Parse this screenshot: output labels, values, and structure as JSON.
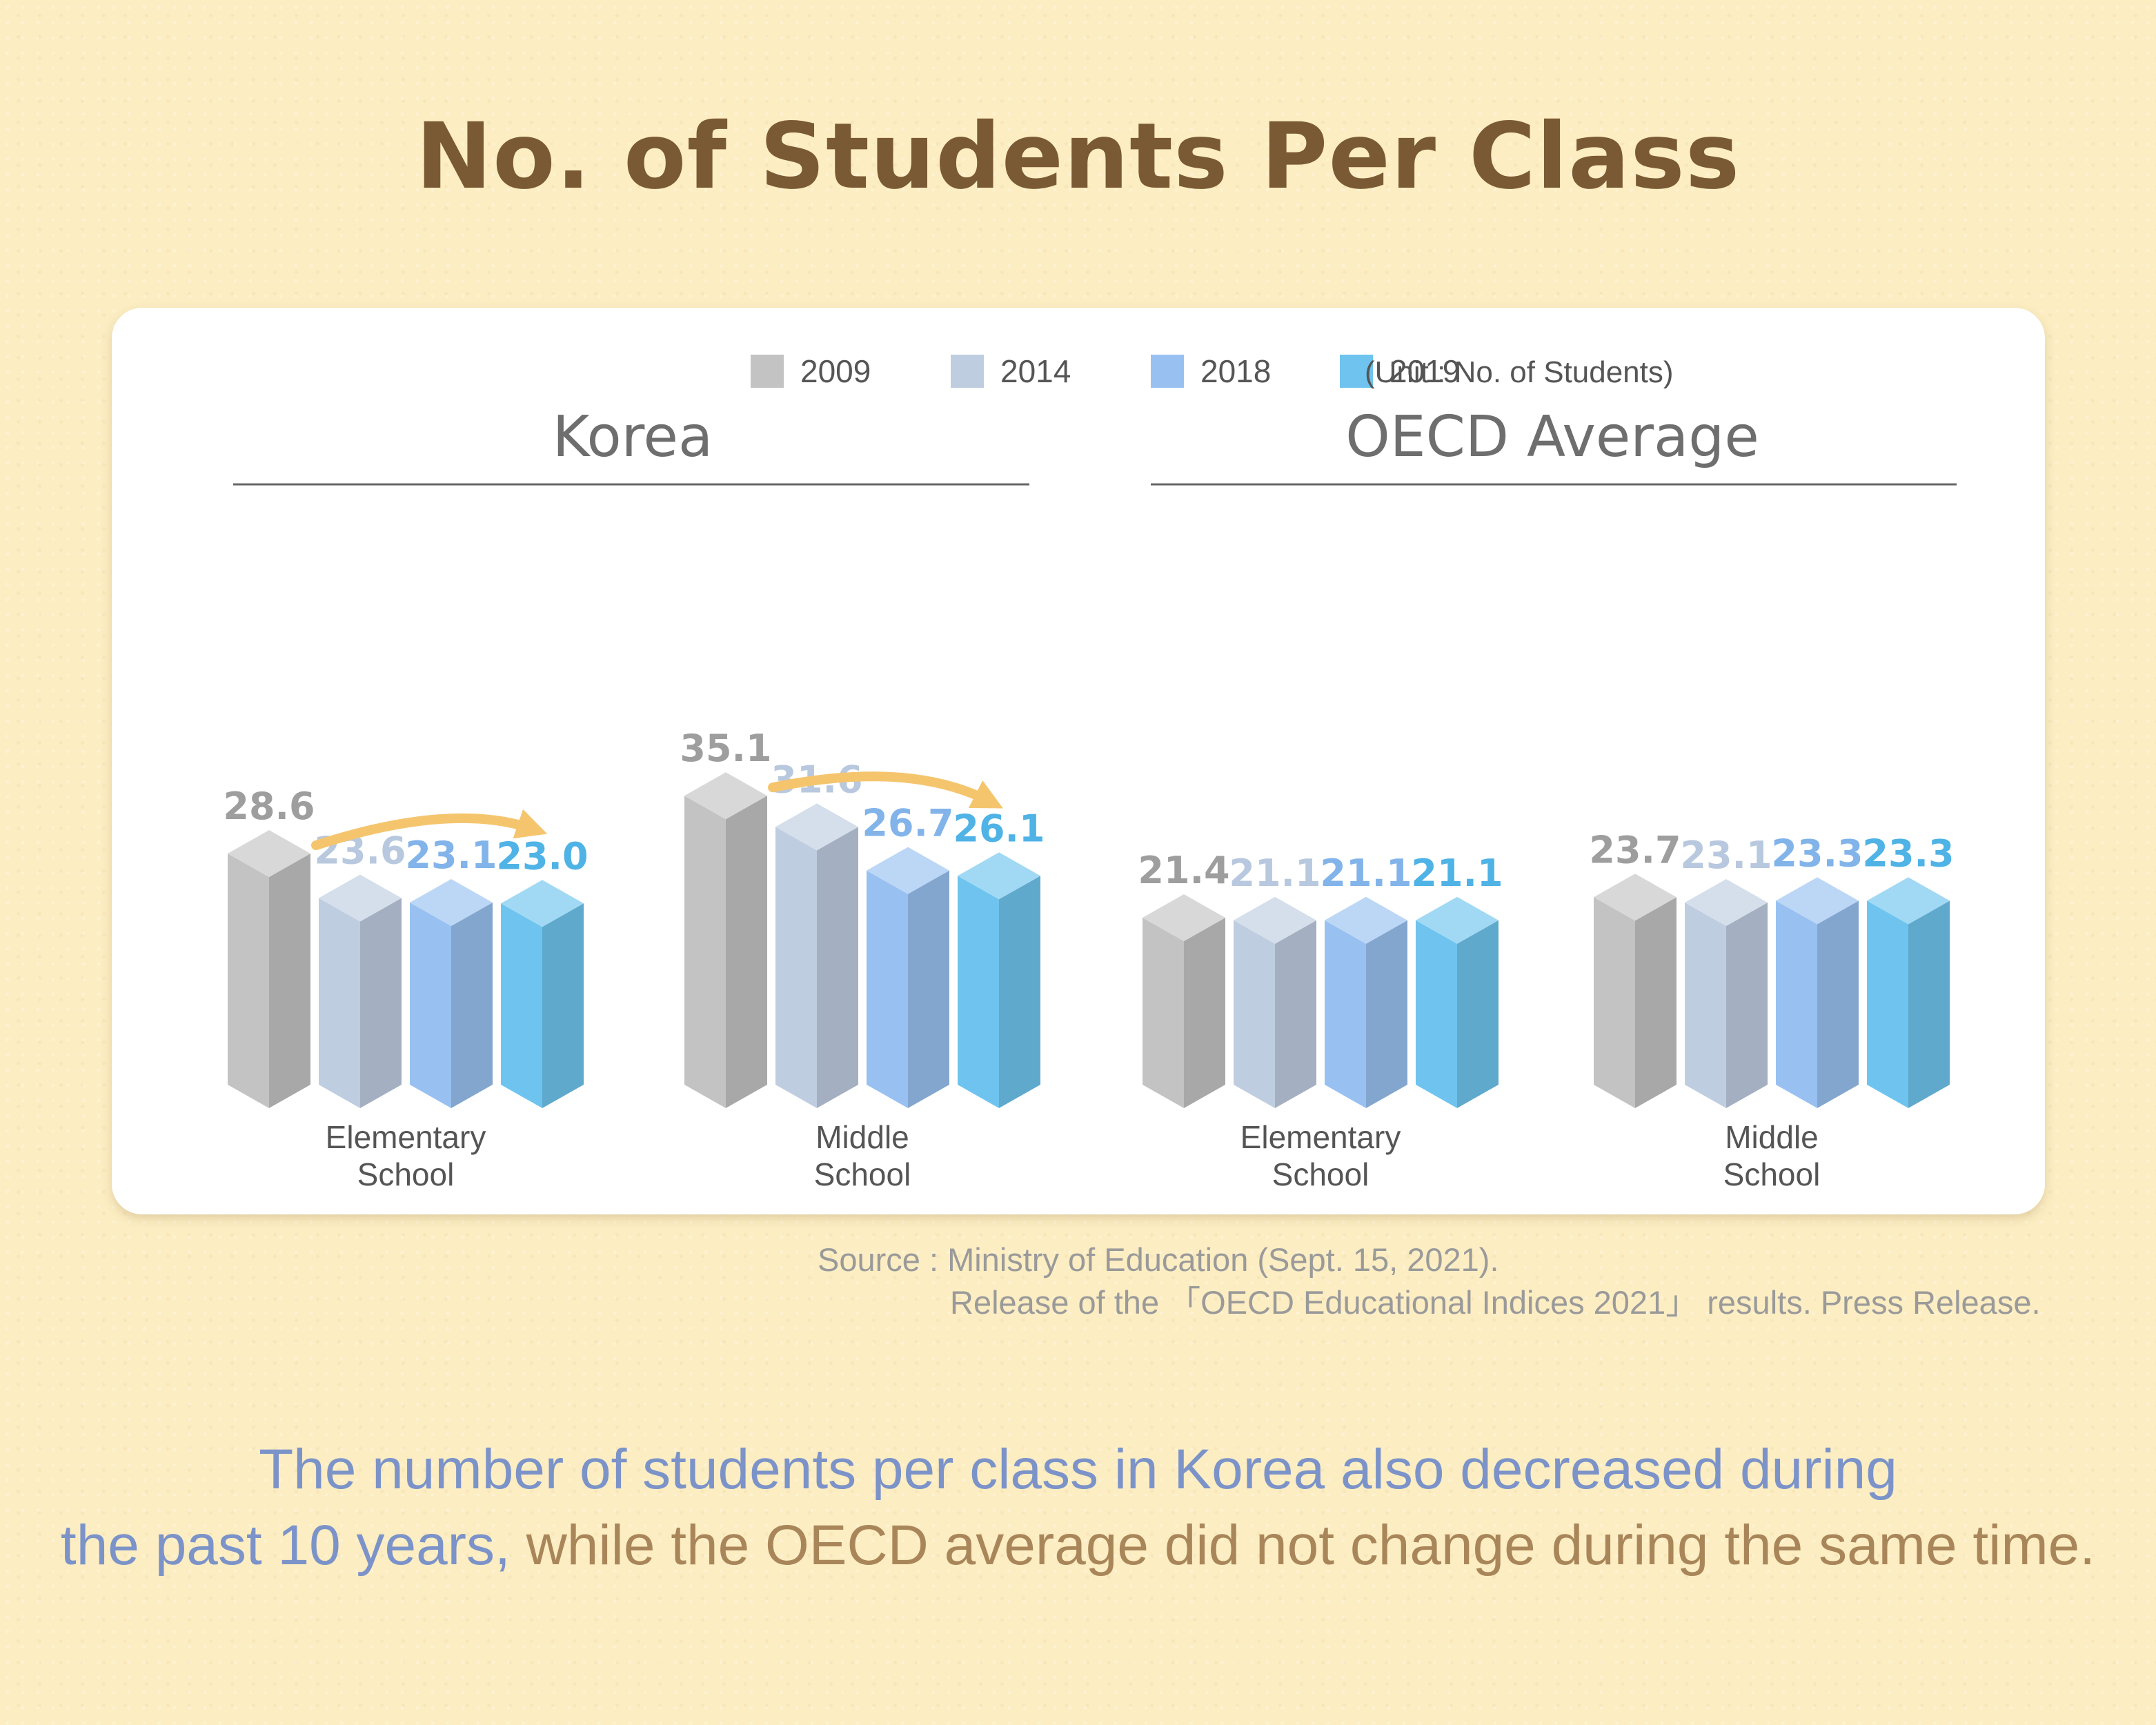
{
  "title": "No. of Students Per Class",
  "unit_note": "(Unit : No. of Students)",
  "source_line1": "Source : Ministry of Education (Sept. 15, 2021).",
  "source_line2": "Release of the 「OECD Educational Indices 2021」 results. Press Release.",
  "caption_line1": "The number of students per class in Korea also decreased during",
  "caption_line2_blue": "the past 10 years,",
  "caption_line2_brown": "while the OECD average did not change during the same time.",
  "colors": {
    "2009": "#c3c3c3",
    "2014": "#bfcde0",
    "2018": "#98c1f1",
    "2019": "#6ec4ee",
    "label_2009": "#9e9e9e",
    "label_2014": "#b8c8de",
    "label_2018": "#82b4ea",
    "label_2019": "#4fb3e6",
    "arrow": "#f5c56e"
  },
  "chart_data": {
    "type": "bar",
    "legend": [
      "2009",
      "2014",
      "2018",
      "2019"
    ],
    "legend_position": "top",
    "groups": [
      {
        "name": "Korea",
        "categories": [
          {
            "label": [
              "Elementary",
              "School"
            ],
            "values": [
              28.6,
              23.6,
              23.1,
              23.0
            ],
            "arrow": true
          },
          {
            "label": [
              "Middle",
              "School"
            ],
            "values": [
              35.1,
              31.6,
              26.7,
              26.1
            ],
            "arrow": true
          }
        ]
      },
      {
        "name": "OECD Average",
        "categories": [
          {
            "label": [
              "Elementary",
              "School"
            ],
            "values": [
              21.4,
              21.1,
              21.1,
              21.1
            ],
            "arrow": false
          },
          {
            "label": [
              "Middle",
              "School"
            ],
            "values": [
              23.7,
              23.1,
              23.3,
              23.3
            ],
            "arrow": false
          }
        ]
      }
    ],
    "value_labels": [
      [
        "28.6",
        "23.6",
        "23.1",
        "23.0"
      ],
      [
        "35.1",
        "31.6",
        "26.7",
        "26.1"
      ],
      [
        "21.4",
        "21.1",
        "21.1",
        "21.1"
      ],
      [
        "23.7",
        "23.1",
        "23.3",
        "23.3"
      ]
    ]
  }
}
